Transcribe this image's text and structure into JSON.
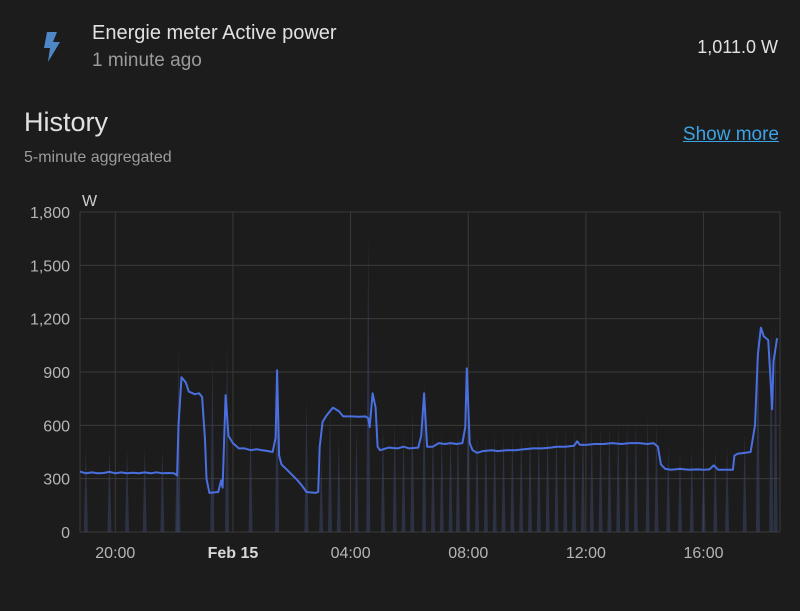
{
  "entity": {
    "icon": "lightning-bolt-icon",
    "name": "Energie meter Active power",
    "last_changed": "1 minute ago",
    "state": "1,011.0 W"
  },
  "history": {
    "title": "History",
    "subtitle": "5-minute aggregated",
    "show_more": "Show more"
  },
  "colors": {
    "background": "#1c1c1c",
    "series": "#4a6fe0",
    "link": "#3ba3e6",
    "grid": "#3a3a3a"
  },
  "chart_data": {
    "type": "line",
    "ylabel": "W",
    "ylim": [
      0,
      1800
    ],
    "yticks": [
      "0",
      "300",
      "600",
      "900",
      "1,200",
      "1,500",
      "1,800"
    ],
    "xlim_hours": [
      18.8,
      42.6
    ],
    "xticks": [
      {
        "label": "20:00",
        "hour": 20,
        "bold": false
      },
      {
        "label": "Feb 15",
        "hour": 24,
        "bold": true
      },
      {
        "label": "04:00",
        "hour": 28,
        "bold": false
      },
      {
        "label": "08:00",
        "hour": 32,
        "bold": false
      },
      {
        "label": "12:00",
        "hour": 36,
        "bold": false
      },
      {
        "label": "16:00",
        "hour": 40,
        "bold": false
      }
    ],
    "grid": true,
    "series": [
      {
        "name": "",
        "points": [
          [
            18.8,
            340
          ],
          [
            19.0,
            330
          ],
          [
            19.2,
            335
          ],
          [
            19.4,
            330
          ],
          [
            19.6,
            332
          ],
          [
            19.8,
            338
          ],
          [
            20.0,
            330
          ],
          [
            20.2,
            335
          ],
          [
            20.4,
            330
          ],
          [
            20.6,
            333
          ],
          [
            20.8,
            330
          ],
          [
            21.0,
            335
          ],
          [
            21.2,
            330
          ],
          [
            21.4,
            336
          ],
          [
            21.6,
            330
          ],
          [
            21.8,
            332
          ],
          [
            22.0,
            330
          ],
          [
            22.1,
            318
          ],
          [
            22.15,
            600
          ],
          [
            22.25,
            870
          ],
          [
            22.4,
            840
          ],
          [
            22.5,
            790
          ],
          [
            22.7,
            775
          ],
          [
            22.85,
            780
          ],
          [
            22.95,
            760
          ],
          [
            23.05,
            520
          ],
          [
            23.1,
            300
          ],
          [
            23.2,
            220
          ],
          [
            23.5,
            225
          ],
          [
            23.6,
            290
          ],
          [
            23.65,
            250
          ],
          [
            23.75,
            770
          ],
          [
            23.85,
            540
          ],
          [
            24.0,
            500
          ],
          [
            24.2,
            470
          ],
          [
            24.4,
            470
          ],
          [
            24.6,
            460
          ],
          [
            24.8,
            465
          ],
          [
            25.0,
            460
          ],
          [
            25.2,
            455
          ],
          [
            25.35,
            450
          ],
          [
            25.45,
            530
          ],
          [
            25.5,
            910
          ],
          [
            25.57,
            430
          ],
          [
            25.65,
            380
          ],
          [
            25.9,
            340
          ],
          [
            26.2,
            290
          ],
          [
            26.35,
            260
          ],
          [
            26.5,
            225
          ],
          [
            26.8,
            220
          ],
          [
            26.9,
            225
          ],
          [
            26.95,
            480
          ],
          [
            27.05,
            620
          ],
          [
            27.2,
            660
          ],
          [
            27.4,
            700
          ],
          [
            27.6,
            680
          ],
          [
            27.75,
            650
          ],
          [
            28.0,
            650
          ],
          [
            28.3,
            648
          ],
          [
            28.5,
            650
          ],
          [
            28.6,
            640
          ],
          [
            28.65,
            590
          ],
          [
            28.75,
            780
          ],
          [
            28.85,
            700
          ],
          [
            28.92,
            480
          ],
          [
            29.0,
            460
          ],
          [
            29.3,
            475
          ],
          [
            29.6,
            470
          ],
          [
            29.8,
            480
          ],
          [
            30.0,
            470
          ],
          [
            30.3,
            475
          ],
          [
            30.4,
            540
          ],
          [
            30.5,
            780
          ],
          [
            30.6,
            480
          ],
          [
            30.8,
            480
          ],
          [
            31.0,
            500
          ],
          [
            31.2,
            495
          ],
          [
            31.4,
            500
          ],
          [
            31.6,
            495
          ],
          [
            31.8,
            500
          ],
          [
            31.9,
            590
          ],
          [
            31.95,
            920
          ],
          [
            32.05,
            500
          ],
          [
            32.15,
            460
          ],
          [
            32.3,
            445
          ],
          [
            32.5,
            455
          ],
          [
            32.8,
            460
          ],
          [
            33.0,
            455
          ],
          [
            33.3,
            460
          ],
          [
            33.6,
            460
          ],
          [
            33.9,
            465
          ],
          [
            34.2,
            470
          ],
          [
            34.5,
            470
          ],
          [
            34.8,
            475
          ],
          [
            35.0,
            480
          ],
          [
            35.3,
            480
          ],
          [
            35.6,
            485
          ],
          [
            35.7,
            510
          ],
          [
            35.8,
            490
          ],
          [
            36.0,
            490
          ],
          [
            36.3,
            495
          ],
          [
            36.6,
            495
          ],
          [
            36.9,
            500
          ],
          [
            37.2,
            495
          ],
          [
            37.5,
            500
          ],
          [
            37.8,
            500
          ],
          [
            38.1,
            495
          ],
          [
            38.3,
            500
          ],
          [
            38.45,
            480
          ],
          [
            38.55,
            380
          ],
          [
            38.7,
            355
          ],
          [
            38.9,
            350
          ],
          [
            39.2,
            355
          ],
          [
            39.5,
            350
          ],
          [
            39.8,
            352
          ],
          [
            40.0,
            350
          ],
          [
            40.2,
            352
          ],
          [
            40.35,
            375
          ],
          [
            40.5,
            350
          ],
          [
            40.8,
            350
          ],
          [
            41.0,
            350
          ],
          [
            41.05,
            430
          ],
          [
            41.15,
            440
          ],
          [
            41.4,
            445
          ],
          [
            41.6,
            450
          ],
          [
            41.75,
            600
          ],
          [
            41.85,
            1000
          ],
          [
            41.95,
            1150
          ],
          [
            42.05,
            1100
          ],
          [
            42.2,
            1080
          ],
          [
            42.28,
            850
          ],
          [
            42.33,
            690
          ],
          [
            42.38,
            960
          ],
          [
            42.5,
            1090
          ]
        ]
      }
    ],
    "spikes": [
      [
        19.0,
        470
      ],
      [
        19.8,
        470
      ],
      [
        20.4,
        470
      ],
      [
        21.0,
        470
      ],
      [
        21.6,
        470
      ],
      [
        22.1,
        480
      ],
      [
        22.15,
        1050
      ],
      [
        23.3,
        1000
      ],
      [
        23.8,
        1080
      ],
      [
        24.6,
        620
      ],
      [
        25.5,
        980
      ],
      [
        26.5,
        750
      ],
      [
        27.0,
        420
      ],
      [
        27.3,
        700
      ],
      [
        27.6,
        520
      ],
      [
        28.2,
        580
      ],
      [
        28.6,
        1670
      ],
      [
        29.1,
        600
      ],
      [
        29.5,
        620
      ],
      [
        29.8,
        560
      ],
      [
        30.1,
        700
      ],
      [
        30.5,
        850
      ],
      [
        30.8,
        580
      ],
      [
        31.1,
        560
      ],
      [
        31.4,
        560
      ],
      [
        31.65,
        600
      ],
      [
        32.0,
        1000
      ],
      [
        32.3,
        560
      ],
      [
        32.6,
        560
      ],
      [
        32.9,
        560
      ],
      [
        33.2,
        560
      ],
      [
        33.5,
        560
      ],
      [
        33.8,
        570
      ],
      [
        34.1,
        570
      ],
      [
        34.4,
        570
      ],
      [
        34.7,
        580
      ],
      [
        35.0,
        580
      ],
      [
        35.3,
        590
      ],
      [
        35.6,
        600
      ],
      [
        35.9,
        600
      ],
      [
        36.2,
        600
      ],
      [
        36.5,
        600
      ],
      [
        36.8,
        600
      ],
      [
        37.1,
        610
      ],
      [
        37.4,
        610
      ],
      [
        37.7,
        610
      ],
      [
        38.1,
        650
      ],
      [
        38.4,
        620
      ],
      [
        38.8,
        480
      ],
      [
        39.2,
        460
      ],
      [
        39.6,
        460
      ],
      [
        40.0,
        460
      ],
      [
        40.4,
        470
      ],
      [
        40.8,
        480
      ],
      [
        41.4,
        550
      ],
      [
        41.85,
        1180
      ],
      [
        42.3,
        1200
      ],
      [
        42.45,
        1180
      ]
    ]
  }
}
